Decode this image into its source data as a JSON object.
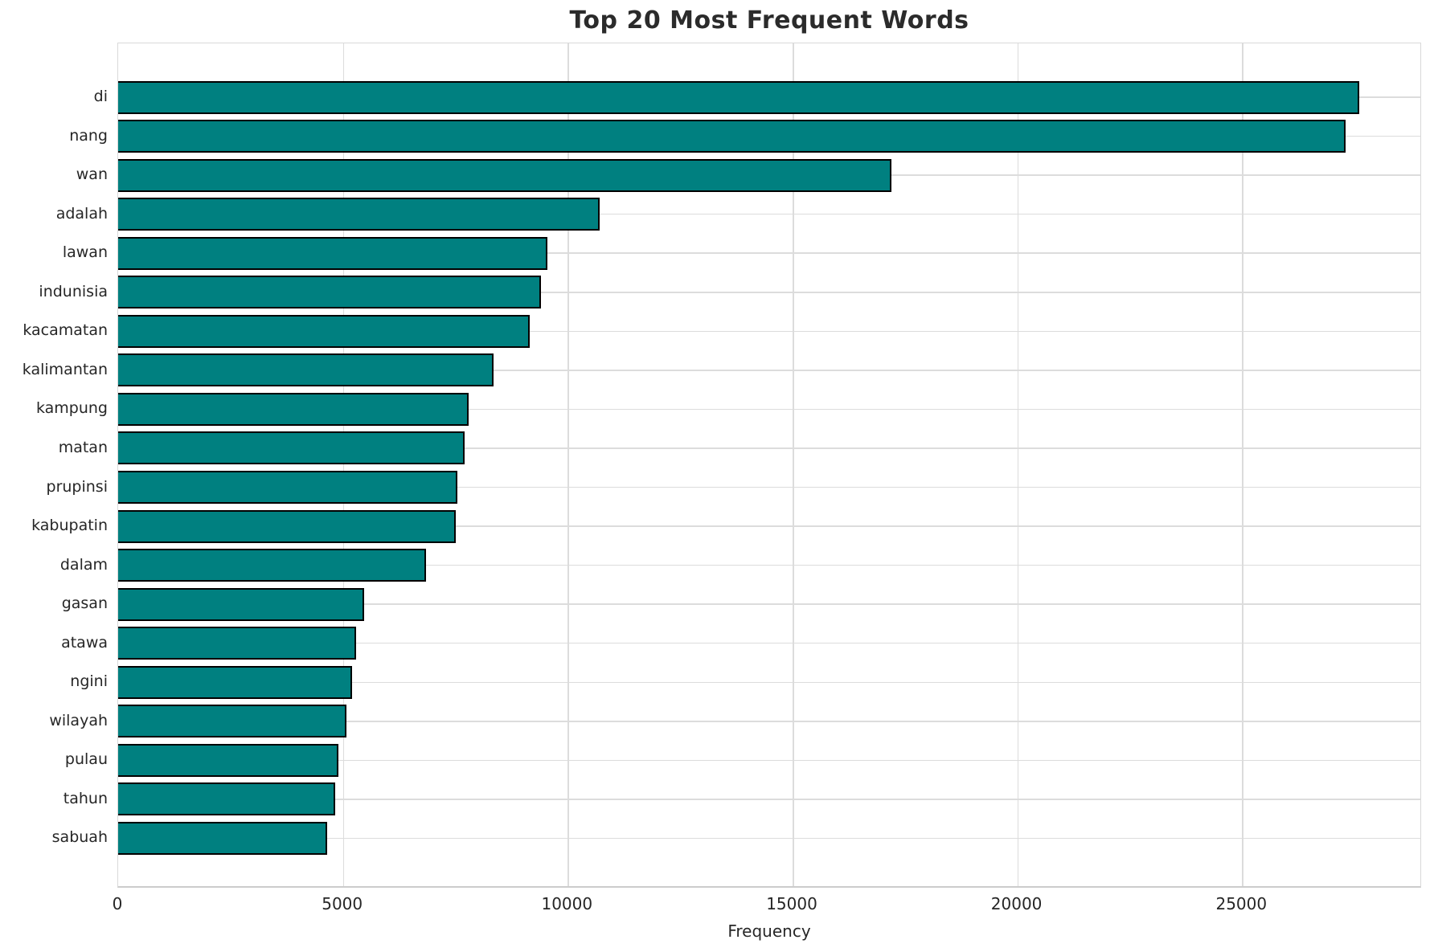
{
  "title": "Top 20 Most Frequent Words",
  "chart_data": {
    "type": "bar",
    "orientation": "horizontal",
    "title": "Top 20 Most Frequent Words",
    "xlabel": "Frequency",
    "ylabel": "",
    "categories": [
      "di",
      "nang",
      "wan",
      "adalah",
      "lawan",
      "indunisia",
      "kacamatan",
      "kalimantan",
      "kampung",
      "matan",
      "prupinsi",
      "kabupatin",
      "dalam",
      "gasan",
      "atawa",
      "ngini",
      "wilayah",
      "pulau",
      "tahun",
      "sabuah"
    ],
    "values": [
      27600,
      27300,
      17200,
      10700,
      9550,
      9400,
      9150,
      8350,
      7800,
      7700,
      7550,
      7500,
      6850,
      5470,
      5290,
      5200,
      5070,
      4890,
      4820,
      4640
    ],
    "xticks": [
      0,
      5000,
      10000,
      15000,
      20000,
      25000
    ],
    "xlim": [
      0,
      29000
    ],
    "grid": true,
    "legend": "none",
    "colors": {
      "bar_fill": "#008080",
      "bar_edge": "#000000",
      "gridline": "#dcdcdc",
      "text": "#262626",
      "background": "#ffffff"
    }
  }
}
